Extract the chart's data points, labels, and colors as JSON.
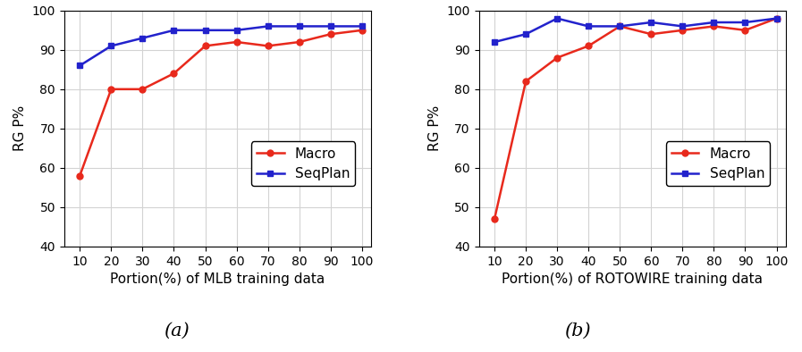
{
  "x": [
    10,
    20,
    30,
    40,
    50,
    60,
    70,
    80,
    90,
    100
  ],
  "mlb_macro": [
    58,
    80,
    80,
    84,
    91,
    92,
    91,
    92,
    94,
    95
  ],
  "mlb_seqplan": [
    86,
    91,
    93,
    95,
    95,
    95,
    96,
    96,
    96,
    96
  ],
  "roto_macro": [
    47,
    82,
    88,
    91,
    96,
    94,
    95,
    96,
    95,
    98
  ],
  "roto_seqplan": [
    92,
    94,
    98,
    96,
    96,
    97,
    96,
    97,
    97,
    98
  ],
  "macro_color": "#e8291c",
  "seqplan_color": "#2222cc",
  "ylabel": "RG P%",
  "xlabel_mlb": "Portion(%) of MLB training data",
  "xlabel_roto": "Portion(%) of ROTOWIRE training data",
  "ylim": [
    40,
    100
  ],
  "yticks": [
    40,
    50,
    60,
    70,
    80,
    90,
    100
  ],
  "xticks": [
    10,
    20,
    30,
    40,
    50,
    60,
    70,
    80,
    90,
    100
  ],
  "label_a": "(a)",
  "label_b": "(b)",
  "label_macro": "Macro",
  "label_seqplan": "SeqPlan"
}
